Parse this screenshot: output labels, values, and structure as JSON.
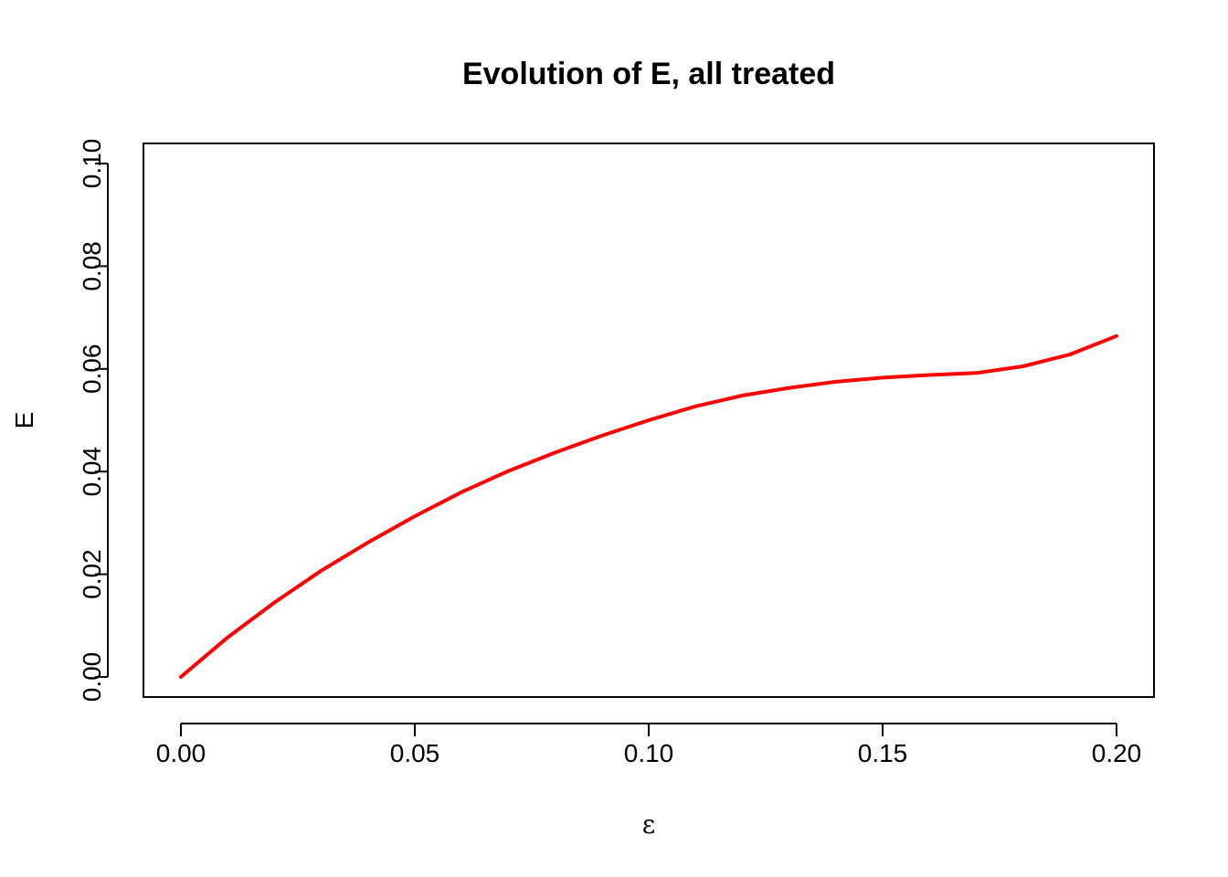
{
  "chart_data": {
    "type": "line",
    "title": "Evolution of E, all treated",
    "xlabel": "ε",
    "ylabel": "E",
    "xlim": [
      0,
      0.2
    ],
    "ylim": [
      0,
      0.1
    ],
    "xticks": [
      "0.00",
      "0.05",
      "0.10",
      "0.15",
      "0.20"
    ],
    "yticks": [
      "0.00",
      "0.02",
      "0.04",
      "0.06",
      "0.08",
      "0.10"
    ],
    "grid": false,
    "series": [
      {
        "color": "#ff0000",
        "x": [
          0.0,
          0.01,
          0.02,
          0.03,
          0.04,
          0.05,
          0.06,
          0.07,
          0.08,
          0.09,
          0.1,
          0.11,
          0.12,
          0.13,
          0.14,
          0.15,
          0.16,
          0.17,
          0.18,
          0.19,
          0.2
        ],
        "y": [
          0.0,
          0.0077,
          0.0145,
          0.0207,
          0.0262,
          0.0313,
          0.036,
          0.0401,
          0.0437,
          0.047,
          0.05,
          0.0527,
          0.0548,
          0.0563,
          0.0575,
          0.0583,
          0.0588,
          0.0592,
          0.0605,
          0.0628,
          0.0664
        ]
      }
    ]
  }
}
